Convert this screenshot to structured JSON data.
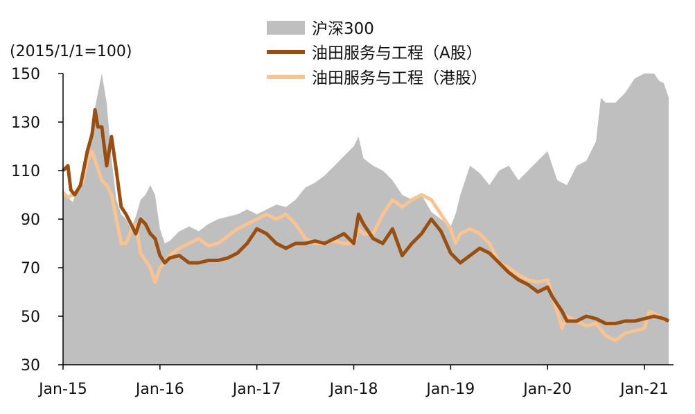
{
  "chart_data": {
    "type": "area",
    "title": "",
    "unit_label": "(2015/1/1=100)",
    "xlabel": "",
    "ylabel": "",
    "ylim": [
      30,
      150
    ],
    "yticks": [
      150,
      130,
      110,
      90,
      70,
      50,
      30
    ],
    "xlim": [
      2015.0,
      2021.3
    ],
    "xticks": [
      {
        "label": "Jan-15",
        "x": 2015.0
      },
      {
        "label": "Jan-16",
        "x": 2016.0
      },
      {
        "label": "Jan-17",
        "x": 2017.0
      },
      {
        "label": "Jan-18",
        "x": 2018.0
      },
      {
        "label": "Jan-19",
        "x": 2019.0
      },
      {
        "label": "Jan-20",
        "x": 2020.0
      },
      {
        "label": "Jan-21",
        "x": 2021.0
      }
    ],
    "legend_position": "top-center",
    "series": [
      {
        "name": "沪深300",
        "style": "area",
        "color": "#bfbfbf",
        "points": [
          [
            2015.0,
            102
          ],
          [
            2015.05,
            99
          ],
          [
            2015.1,
            97
          ],
          [
            2015.15,
            103
          ],
          [
            2015.2,
            108
          ],
          [
            2015.25,
            118
          ],
          [
            2015.3,
            130
          ],
          [
            2015.35,
            140
          ],
          [
            2015.4,
            150
          ],
          [
            2015.45,
            138
          ],
          [
            2015.5,
            115
          ],
          [
            2015.55,
            98
          ],
          [
            2015.6,
            92
          ],
          [
            2015.65,
            90
          ],
          [
            2015.7,
            86
          ],
          [
            2015.75,
            91
          ],
          [
            2015.8,
            98
          ],
          [
            2015.85,
            100
          ],
          [
            2015.9,
            104
          ],
          [
            2015.95,
            100
          ],
          [
            2016.0,
            86
          ],
          [
            2016.05,
            80
          ],
          [
            2016.1,
            81
          ],
          [
            2016.2,
            85
          ],
          [
            2016.3,
            87
          ],
          [
            2016.4,
            85
          ],
          [
            2016.5,
            88
          ],
          [
            2016.6,
            90
          ],
          [
            2016.7,
            91
          ],
          [
            2016.8,
            92
          ],
          [
            2016.9,
            94
          ],
          [
            2017.0,
            92
          ],
          [
            2017.1,
            94
          ],
          [
            2017.2,
            96
          ],
          [
            2017.3,
            95
          ],
          [
            2017.4,
            98
          ],
          [
            2017.5,
            103
          ],
          [
            2017.6,
            105
          ],
          [
            2017.7,
            108
          ],
          [
            2017.8,
            112
          ],
          [
            2017.9,
            116
          ],
          [
            2018.0,
            120
          ],
          [
            2018.05,
            124
          ],
          [
            2018.1,
            115
          ],
          [
            2018.2,
            112
          ],
          [
            2018.3,
            110
          ],
          [
            2018.4,
            106
          ],
          [
            2018.5,
            100
          ],
          [
            2018.6,
            98
          ],
          [
            2018.7,
            100
          ],
          [
            2018.8,
            93
          ],
          [
            2018.9,
            90
          ],
          [
            2019.0,
            87
          ],
          [
            2019.05,
            92
          ],
          [
            2019.1,
            100
          ],
          [
            2019.2,
            112
          ],
          [
            2019.3,
            109
          ],
          [
            2019.4,
            104
          ],
          [
            2019.5,
            110
          ],
          [
            2019.6,
            112
          ],
          [
            2019.7,
            106
          ],
          [
            2019.8,
            110
          ],
          [
            2019.9,
            114
          ],
          [
            2020.0,
            118
          ],
          [
            2020.05,
            112
          ],
          [
            2020.1,
            106
          ],
          [
            2020.2,
            104
          ],
          [
            2020.3,
            112
          ],
          [
            2020.4,
            114
          ],
          [
            2020.5,
            122
          ],
          [
            2020.55,
            140
          ],
          [
            2020.6,
            138
          ],
          [
            2020.7,
            138
          ],
          [
            2020.8,
            142
          ],
          [
            2020.9,
            148
          ],
          [
            2021.0,
            150
          ],
          [
            2021.05,
            155
          ],
          [
            2021.1,
            152
          ],
          [
            2021.15,
            147
          ],
          [
            2021.2,
            146
          ],
          [
            2021.25,
            140
          ]
        ]
      },
      {
        "name": "油田服务与工程（A股）",
        "style": "line",
        "color": "#9a4f12",
        "points": [
          [
            2015.0,
            110
          ],
          [
            2015.05,
            112
          ],
          [
            2015.08,
            102
          ],
          [
            2015.12,
            100
          ],
          [
            2015.18,
            104
          ],
          [
            2015.25,
            118
          ],
          [
            2015.3,
            125
          ],
          [
            2015.33,
            135
          ],
          [
            2015.36,
            128
          ],
          [
            2015.4,
            128
          ],
          [
            2015.45,
            112
          ],
          [
            2015.5,
            124
          ],
          [
            2015.55,
            110
          ],
          [
            2015.6,
            95
          ],
          [
            2015.65,
            92
          ],
          [
            2015.7,
            88
          ],
          [
            2015.75,
            84
          ],
          [
            2015.8,
            90
          ],
          [
            2015.85,
            88
          ],
          [
            2015.9,
            84
          ],
          [
            2015.95,
            82
          ],
          [
            2016.0,
            75
          ],
          [
            2016.05,
            72
          ],
          [
            2016.1,
            74
          ],
          [
            2016.2,
            75
          ],
          [
            2016.3,
            72
          ],
          [
            2016.4,
            72
          ],
          [
            2016.5,
            73
          ],
          [
            2016.6,
            73
          ],
          [
            2016.7,
            74
          ],
          [
            2016.8,
            76
          ],
          [
            2016.9,
            80
          ],
          [
            2017.0,
            86
          ],
          [
            2017.1,
            84
          ],
          [
            2017.2,
            80
          ],
          [
            2017.3,
            78
          ],
          [
            2017.4,
            80
          ],
          [
            2017.5,
            80
          ],
          [
            2017.6,
            81
          ],
          [
            2017.7,
            80
          ],
          [
            2017.8,
            82
          ],
          [
            2017.9,
            84
          ],
          [
            2018.0,
            80
          ],
          [
            2018.05,
            92
          ],
          [
            2018.1,
            88
          ],
          [
            2018.2,
            82
          ],
          [
            2018.3,
            80
          ],
          [
            2018.4,
            86
          ],
          [
            2018.5,
            75
          ],
          [
            2018.6,
            80
          ],
          [
            2018.7,
            84
          ],
          [
            2018.8,
            90
          ],
          [
            2018.9,
            85
          ],
          [
            2019.0,
            76
          ],
          [
            2019.1,
            72
          ],
          [
            2019.2,
            75
          ],
          [
            2019.3,
            78
          ],
          [
            2019.4,
            76
          ],
          [
            2019.5,
            72
          ],
          [
            2019.6,
            68
          ],
          [
            2019.7,
            65
          ],
          [
            2019.8,
            63
          ],
          [
            2019.9,
            60
          ],
          [
            2020.0,
            62
          ],
          [
            2020.05,
            58
          ],
          [
            2020.1,
            55
          ],
          [
            2020.15,
            52
          ],
          [
            2020.2,
            48
          ],
          [
            2020.3,
            48
          ],
          [
            2020.4,
            50
          ],
          [
            2020.5,
            49
          ],
          [
            2020.6,
            47
          ],
          [
            2020.7,
            47
          ],
          [
            2020.8,
            48
          ],
          [
            2020.9,
            48
          ],
          [
            2021.0,
            49
          ],
          [
            2021.1,
            50
          ],
          [
            2021.2,
            49
          ],
          [
            2021.25,
            48
          ]
        ]
      },
      {
        "name": "油田服务与工程（港股）",
        "style": "line",
        "color": "#f9c392",
        "points": [
          [
            2015.0,
            101
          ],
          [
            2015.05,
            99
          ],
          [
            2015.1,
            100
          ],
          [
            2015.15,
            102
          ],
          [
            2015.2,
            105
          ],
          [
            2015.25,
            114
          ],
          [
            2015.3,
            118
          ],
          [
            2015.35,
            112
          ],
          [
            2015.4,
            106
          ],
          [
            2015.45,
            104
          ],
          [
            2015.5,
            100
          ],
          [
            2015.55,
            90
          ],
          [
            2015.6,
            80
          ],
          [
            2015.65,
            80
          ],
          [
            2015.7,
            85
          ],
          [
            2015.75,
            88
          ],
          [
            2015.8,
            76
          ],
          [
            2015.85,
            73
          ],
          [
            2015.9,
            70
          ],
          [
            2015.95,
            64
          ],
          [
            2016.0,
            70
          ],
          [
            2016.05,
            72
          ],
          [
            2016.1,
            75
          ],
          [
            2016.2,
            78
          ],
          [
            2016.3,
            80
          ],
          [
            2016.4,
            82
          ],
          [
            2016.5,
            79
          ],
          [
            2016.6,
            80
          ],
          [
            2016.7,
            83
          ],
          [
            2016.8,
            86
          ],
          [
            2016.9,
            88
          ],
          [
            2017.0,
            90
          ],
          [
            2017.1,
            92
          ],
          [
            2017.2,
            90
          ],
          [
            2017.3,
            92
          ],
          [
            2017.4,
            88
          ],
          [
            2017.5,
            82
          ],
          [
            2017.6,
            80
          ],
          [
            2017.7,
            80
          ],
          [
            2017.8,
            81
          ],
          [
            2017.9,
            80
          ],
          [
            2018.0,
            80
          ],
          [
            2018.05,
            86
          ],
          [
            2018.1,
            84
          ],
          [
            2018.2,
            84
          ],
          [
            2018.3,
            92
          ],
          [
            2018.4,
            98
          ],
          [
            2018.5,
            95
          ],
          [
            2018.6,
            98
          ],
          [
            2018.7,
            100
          ],
          [
            2018.8,
            98
          ],
          [
            2018.9,
            92
          ],
          [
            2019.0,
            86
          ],
          [
            2019.05,
            80
          ],
          [
            2019.1,
            84
          ],
          [
            2019.2,
            86
          ],
          [
            2019.3,
            84
          ],
          [
            2019.4,
            80
          ],
          [
            2019.5,
            72
          ],
          [
            2019.6,
            70
          ],
          [
            2019.7,
            67
          ],
          [
            2019.8,
            65
          ],
          [
            2019.9,
            64
          ],
          [
            2020.0,
            65
          ],
          [
            2020.05,
            58
          ],
          [
            2020.1,
            52
          ],
          [
            2020.15,
            45
          ],
          [
            2020.2,
            50
          ],
          [
            2020.3,
            48
          ],
          [
            2020.4,
            46
          ],
          [
            2020.5,
            47
          ],
          [
            2020.6,
            42
          ],
          [
            2020.7,
            40
          ],
          [
            2020.8,
            43
          ],
          [
            2020.9,
            44
          ],
          [
            2021.0,
            45
          ],
          [
            2021.05,
            52
          ],
          [
            2021.1,
            51
          ],
          [
            2021.2,
            49
          ],
          [
            2021.25,
            48
          ]
        ]
      }
    ]
  }
}
